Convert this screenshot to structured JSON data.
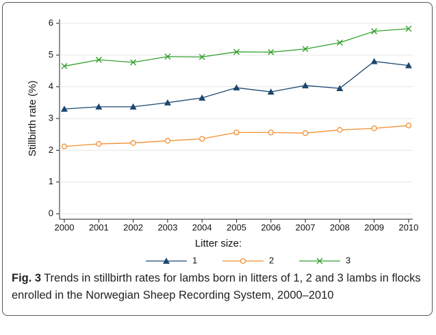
{
  "chart_data": {
    "type": "line",
    "y_label": "Stillbirth rate (%)",
    "legend_title": "Litter size:",
    "x": [
      2000,
      2001,
      2002,
      2003,
      2004,
      2005,
      2006,
      2007,
      2008,
      2009,
      2010
    ],
    "xlim": [
      2000,
      2010
    ],
    "xticks": [
      2000,
      2001,
      2002,
      2003,
      2004,
      2005,
      2006,
      2007,
      2008,
      2009,
      2010
    ],
    "ylim": [
      0,
      6
    ],
    "yticks": [
      0,
      1,
      2,
      3,
      4,
      5,
      6
    ],
    "grid": true,
    "series": [
      {
        "name": "1",
        "color": "#1a476f",
        "marker": "triangle",
        "values": [
          3.3,
          3.37,
          3.37,
          3.5,
          3.65,
          3.97,
          3.84,
          4.04,
          3.95,
          4.8,
          4.67
        ]
      },
      {
        "name": "2",
        "color": "#f28e2b",
        "marker": "circle",
        "values": [
          2.12,
          2.2,
          2.23,
          2.3,
          2.36,
          2.56,
          2.56,
          2.54,
          2.64,
          2.69,
          2.78
        ]
      },
      {
        "name": "3",
        "color": "#33a02c",
        "marker": "x",
        "values": [
          4.65,
          4.85,
          4.77,
          4.95,
          4.94,
          5.1,
          5.09,
          5.19,
          5.39,
          5.75,
          5.83
        ]
      }
    ]
  },
  "caption": {
    "label": "Fig. 3",
    "text": "Trends in stillbirth rates for lambs born in litters of 1, 2 and 3 lambs in flocks enrolled in the Norwegian Sheep Recording System, 2000–2010"
  }
}
